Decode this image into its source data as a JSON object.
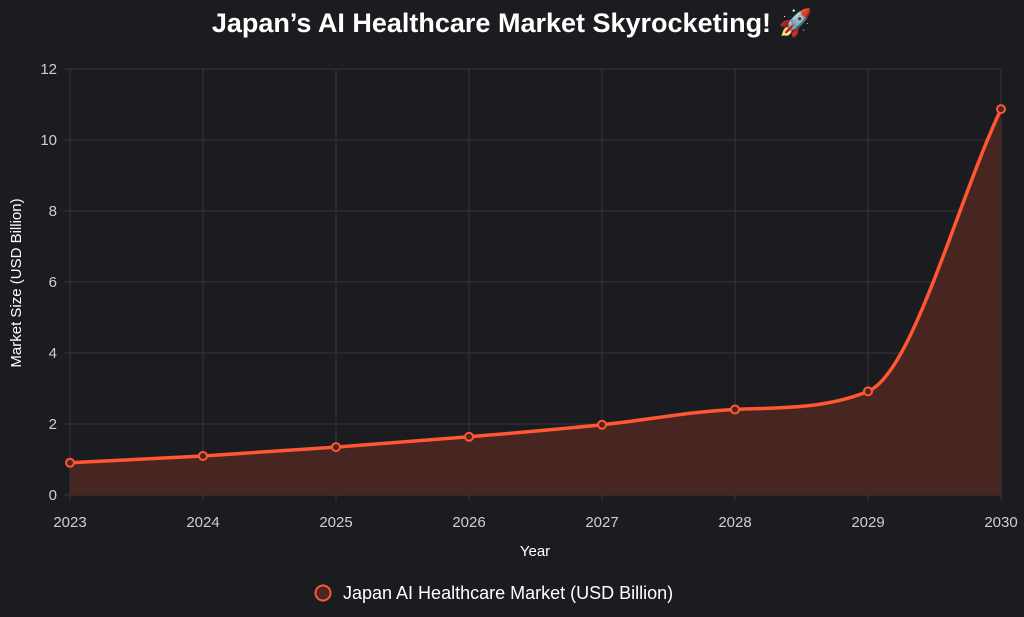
{
  "chart_data": {
    "type": "area",
    "title": "Japan’s AI Healthcare Market Skyrocketing! 🚀",
    "xlabel": "Year",
    "ylabel": "Market Size (USD Billion)",
    "ylim": [
      0,
      12
    ],
    "y_ticks": [
      "0",
      "2",
      "4",
      "6",
      "8",
      "10",
      "12"
    ],
    "categories": [
      "2023",
      "2024",
      "2025",
      "2026",
      "2027",
      "2028",
      "2029",
      "2030"
    ],
    "grid": true,
    "legend_position": "bottom",
    "series": [
      {
        "name": "Japan AI Healthcare Market (USD Billion)",
        "values": [
          0.91,
          1.1,
          1.35,
          1.64,
          1.98,
          2.41,
          2.92,
          10.87
        ],
        "line_color": "#ff5733",
        "fill_color": "#4a2622"
      }
    ]
  }
}
